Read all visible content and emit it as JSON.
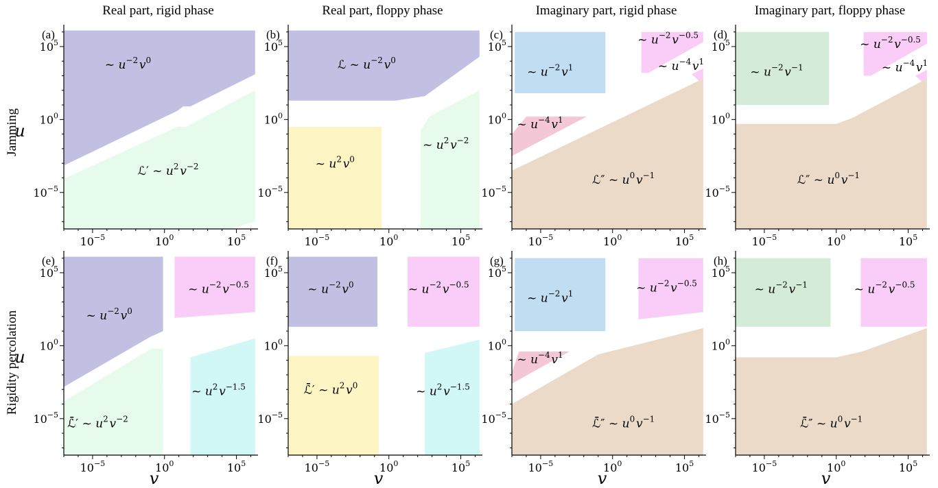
{
  "column_titles": [
    "Real part, rigid phase",
    "Real part, floppy phase",
    "Imaginary part, rigid phase",
    "Imaginary part, floppy phase"
  ],
  "row_labels": [
    "Jamming",
    "Rigidity percolation"
  ],
  "colors": {
    "purple": "#c2c0e2",
    "mint": "#e6fbeb",
    "yellow": "#fdf5c4",
    "pink": "#f9cdf7",
    "cyan": "#d1f7f7",
    "blue": "#c0ddf2",
    "rose": "#f3c7d5",
    "tan": "#ebdac7",
    "green": "#d4ecd7"
  },
  "chart_data": [
    {
      "type": "area",
      "panel": "(a)",
      "row": 0,
      "col": 0,
      "xlabel": "",
      "ylabel": "u",
      "xlim": [
        -7,
        6.5
      ],
      "ylim": [
        -7.5,
        6.5
      ],
      "scale": "log10",
      "x_ticks": [
        "10^-5",
        "10^0",
        "10^5"
      ],
      "y_ticks": [
        "10^5",
        "10^0",
        "10^-5"
      ],
      "regions": [
        {
          "color": "purple",
          "label": "~ u^{-2}v^{0}",
          "label_at": [
            -2.5,
            3.5
          ],
          "polygon": [
            [
              -7.3,
              6.1
            ],
            [
              6.3,
              6.1
            ],
            [
              6.3,
              3.1
            ],
            [
              1.8,
              0.9
            ],
            [
              1.3,
              0.9
            ],
            [
              0.9,
              0.6
            ],
            [
              -7.3,
              -3.3
            ]
          ]
        },
        {
          "color": "mint",
          "label": "ℒ′ ~ u^{2}v^{-2}",
          "label_at": [
            0.3,
            -3.8
          ],
          "polygon": [
            [
              6.3,
              2.0
            ],
            [
              1.5,
              -0.5
            ],
            [
              0.9,
              -0.5
            ],
            [
              -7.3,
              -4.2
            ],
            [
              -7.3,
              -7.5
            ],
            [
              4.5,
              -7.5
            ],
            [
              6.3,
              -7.0
            ]
          ]
        }
      ]
    },
    {
      "type": "area",
      "panel": "(b)",
      "row": 0,
      "col": 1,
      "xlabel": "",
      "ylabel": "",
      "xlim": [
        -7,
        6.5
      ],
      "ylim": [
        -7.5,
        6.5
      ],
      "scale": "log10",
      "x_ticks": [
        "10^-5",
        "10^0",
        "10^5"
      ],
      "y_ticks": [
        "10^5",
        "10^0",
        "10^-5"
      ],
      "regions": [
        {
          "color": "purple",
          "label": "ℒ ~ u^{-2}v^{0}",
          "label_at": [
            -1.5,
            3.5
          ],
          "polygon": [
            [
              -7.3,
              6.1
            ],
            [
              6.3,
              6.1
            ],
            [
              6.3,
              4.3
            ],
            [
              2.5,
              1.6
            ],
            [
              0.5,
              1.3
            ],
            [
              -7.3,
              1.3
            ]
          ]
        },
        {
          "color": "yellow",
          "label": "~ u^{2}v^{0}",
          "label_at": [
            -3.7,
            -3.3
          ],
          "polygon": [
            [
              -7.3,
              -0.5
            ],
            [
              -0.5,
              -0.5
            ],
            [
              -0.5,
              -7.5
            ],
            [
              -7.3,
              -7.5
            ]
          ]
        },
        {
          "color": "mint",
          "label": "~ u^{2}v^{-2}",
          "label_at": [
            4.0,
            -2.0
          ],
          "polygon": [
            [
              6.3,
              2.0
            ],
            [
              2.8,
              0.2
            ],
            [
              2.2,
              -0.8
            ],
            [
              2.2,
              -7.5
            ],
            [
              6.3,
              -7.5
            ]
          ]
        }
      ]
    },
    {
      "type": "area",
      "panel": "(c)",
      "row": 0,
      "col": 2,
      "xlabel": "",
      "ylabel": "",
      "xlim": [
        -7,
        6.5
      ],
      "ylim": [
        -7.5,
        6.5
      ],
      "scale": "log10",
      "x_ticks": [
        "10^-5",
        "10^0",
        "10^5"
      ],
      "y_ticks": [
        "10^5",
        "10^0",
        "10^-5"
      ],
      "regions": [
        {
          "color": "blue",
          "label": "~ u^{-2}v^{1}",
          "label_at": [
            -4.3,
            3.0
          ],
          "polygon": [
            [
              -6.8,
              6.0
            ],
            [
              -0.5,
              6.0
            ],
            [
              -0.5,
              1.8
            ],
            [
              -6.8,
              1.8
            ]
          ]
        },
        {
          "color": "pink",
          "label": "~ u^{-2}v^{-0.5}",
          "label_at": [
            3.9,
            5.2
          ],
          "polygon": [
            [
              2.0,
              6.0
            ],
            [
              6.3,
              6.0
            ],
            [
              6.3,
              5.3
            ],
            [
              2.5,
              3.2
            ],
            [
              2.0,
              3.2
            ]
          ]
        },
        {
          "color": "pink",
          "label": "~ u^{-4}v^{1}",
          "label_at": [
            4.8,
            3.4
          ],
          "polygon": [
            [
              5.5,
              3.1
            ],
            [
              6.3,
              3.5
            ],
            [
              6.3,
              2.4
            ]
          ]
        },
        {
          "color": "rose",
          "label": "~ u^{-4}v^{1}",
          "label_at": [
            -5.0,
            -0.6
          ],
          "polygon": [
            [
              -7.0,
              -1.0
            ],
            [
              -6.0,
              0.2
            ],
            [
              -1.8,
              0.2
            ],
            [
              -7.0,
              -2.5
            ]
          ]
        },
        {
          "color": "tan",
          "label": "ℒ″ ~ u^{0}v^{-1}",
          "label_at": [
            0.8,
            -4.4
          ],
          "polygon": [
            [
              -7.0,
              -3.5
            ],
            [
              6.3,
              2.8
            ],
            [
              6.3,
              -7.5
            ],
            [
              -7.0,
              -7.5
            ]
          ]
        }
      ]
    },
    {
      "type": "area",
      "panel": "(d)",
      "row": 0,
      "col": 3,
      "xlabel": "",
      "ylabel": "",
      "xlim": [
        -7,
        6.5
      ],
      "ylim": [
        -7.5,
        6.5
      ],
      "scale": "log10",
      "x_ticks": [
        "10^-5",
        "10^0",
        "10^5"
      ],
      "y_ticks": [
        "10^5",
        "10^0",
        "10^-5"
      ],
      "regions": [
        {
          "color": "green",
          "label": "~ u^{-2}v^{-1}",
          "label_at": [
            -4.1,
            3.0
          ],
          "polygon": [
            [
              -7.0,
              6.0
            ],
            [
              -0.5,
              6.0
            ],
            [
              -0.5,
              1.0
            ],
            [
              -7.0,
              1.0
            ]
          ]
        },
        {
          "color": "pink",
          "label": "~ u^{-2}v^{-0.5}",
          "label_at": [
            3.8,
            4.9
          ],
          "polygon": [
            [
              1.9,
              6.0
            ],
            [
              6.3,
              6.0
            ],
            [
              6.3,
              5.2
            ],
            [
              2.4,
              3.0
            ],
            [
              1.9,
              3.0
            ]
          ]
        },
        {
          "color": "pink",
          "label": "~ u^{-4}v^{1}",
          "label_at": [
            4.8,
            3.3
          ],
          "polygon": [
            [
              5.5,
              3.0
            ],
            [
              6.3,
              3.4
            ],
            [
              6.3,
              2.3
            ]
          ]
        },
        {
          "color": "tan",
          "label": "ℒ″ ~ u^{0}v^{-1}",
          "label_at": [
            -0.5,
            -4.4
          ],
          "polygon": [
            [
              -7.0,
              -0.3
            ],
            [
              0.0,
              -0.3
            ],
            [
              1.1,
              0.1
            ],
            [
              6.3,
              2.8
            ],
            [
              6.3,
              -7.5
            ],
            [
              -7.0,
              -7.5
            ]
          ]
        }
      ]
    },
    {
      "type": "area",
      "panel": "(e)",
      "row": 1,
      "col": 0,
      "xlabel": "v",
      "ylabel": "u",
      "xlim": [
        -7,
        6.5
      ],
      "ylim": [
        -7.5,
        6.5
      ],
      "scale": "log10",
      "x_ticks": [
        "10^-5",
        "10^0",
        "10^5"
      ],
      "y_ticks": [
        "10^5",
        "10^0",
        "10^-5"
      ],
      "regions": [
        {
          "color": "purple",
          "label": "~ u^{-2}v^{0}",
          "label_at": [
            -3.8,
            1.8
          ],
          "polygon": [
            [
              -7.3,
              6.1
            ],
            [
              -0.1,
              6.1
            ],
            [
              -0.1,
              1.0
            ],
            [
              -1.0,
              0.6
            ],
            [
              -7.3,
              -3.0
            ]
          ]
        },
        {
          "color": "pink",
          "label": "~ u^{-2}v^{-0.5}",
          "label_at": [
            3.8,
            3.6
          ],
          "polygon": [
            [
              0.7,
              6.1
            ],
            [
              6.3,
              6.1
            ],
            [
              6.3,
              2.3
            ],
            [
              0.7,
              1.9
            ]
          ]
        },
        {
          "color": "mint",
          "label": "ℒ̄′ ~ u^{2}v^{-2}",
          "label_at": [
            -4.6,
            -5.6
          ],
          "polygon": [
            [
              -7.3,
              -4.0
            ],
            [
              -0.9,
              -0.2
            ],
            [
              -0.1,
              -0.2
            ],
            [
              -0.1,
              -7.5
            ],
            [
              -7.3,
              -7.5
            ]
          ]
        },
        {
          "color": "cyan",
          "label": "~ u^{2}v^{-1.5}",
          "label_at": [
            3.8,
            -3.4
          ],
          "polygon": [
            [
              1.8,
              -0.8
            ],
            [
              6.3,
              0.5
            ],
            [
              6.3,
              -7.5
            ],
            [
              1.8,
              -7.5
            ]
          ]
        }
      ]
    },
    {
      "type": "area",
      "panel": "(f)",
      "row": 1,
      "col": 1,
      "xlabel": "v",
      "ylabel": "",
      "xlim": [
        -7,
        6.5
      ],
      "ylim": [
        -7.5,
        6.5
      ],
      "scale": "log10",
      "x_ticks": [
        "10^-5",
        "10^0",
        "10^5"
      ],
      "y_ticks": [
        "10^5",
        "10^0",
        "10^-5"
      ],
      "regions": [
        {
          "color": "purple",
          "label": "~ u^{-2}v^{0}",
          "label_at": [
            -4.0,
            3.6
          ],
          "polygon": [
            [
              -7.3,
              6.1
            ],
            [
              -0.8,
              6.1
            ],
            [
              -0.8,
              1.3
            ],
            [
              -7.3,
              1.3
            ]
          ]
        },
        {
          "color": "pink",
          "label": "~ u^{-2}v^{-0.5}",
          "label_at": [
            3.5,
            3.6
          ],
          "polygon": [
            [
              1.3,
              6.1
            ],
            [
              6.3,
              6.1
            ],
            [
              6.3,
              1.3
            ],
            [
              1.3,
              1.3
            ]
          ]
        },
        {
          "color": "yellow",
          "label": "ℒ̄′ ~ u^{2}v^{0}",
          "label_at": [
            -4.0,
            -3.3
          ],
          "polygon": [
            [
              -7.3,
              -0.7
            ],
            [
              -0.7,
              -0.7
            ],
            [
              -0.7,
              -7.5
            ],
            [
              -7.3,
              -7.5
            ]
          ]
        },
        {
          "color": "cyan",
          "label": "~ u^{2}v^{-1.5}",
          "label_at": [
            3.8,
            -3.4
          ],
          "polygon": [
            [
              2.5,
              -0.5
            ],
            [
              6.3,
              0.4
            ],
            [
              6.3,
              -7.5
            ],
            [
              2.5,
              -7.5
            ]
          ]
        }
      ]
    },
    {
      "type": "area",
      "panel": "(g)",
      "row": 1,
      "col": 2,
      "xlabel": "v",
      "ylabel": "",
      "xlim": [
        -7,
        6.5
      ],
      "ylim": [
        -7.5,
        6.5
      ],
      "scale": "log10",
      "x_ticks": [
        "10^-5",
        "10^0",
        "10^5"
      ],
      "y_ticks": [
        "10^5",
        "10^0",
        "10^-5"
      ],
      "regions": [
        {
          "color": "blue",
          "label": "~ u^{-2}v^{1}",
          "label_at": [
            -4.3,
            3.0
          ],
          "polygon": [
            [
              -6.8,
              6.0
            ],
            [
              -0.5,
              6.0
            ],
            [
              -0.5,
              1.0
            ],
            [
              -6.8,
              1.0
            ]
          ]
        },
        {
          "color": "pink",
          "label": "~ u^{-2}v^{-0.5}",
          "label_at": [
            3.8,
            3.7
          ],
          "polygon": [
            [
              1.8,
              6.0
            ],
            [
              6.3,
              6.0
            ],
            [
              6.3,
              2.3
            ],
            [
              1.8,
              1.8
            ]
          ]
        },
        {
          "color": "rose",
          "label": "~ u^{-4}v^{1}",
          "label_at": [
            -5.0,
            -1.2
          ],
          "polygon": [
            [
              -7.0,
              -1.8
            ],
            [
              -6.5,
              -0.4
            ],
            [
              -3.0,
              -0.4
            ],
            [
              -7.0,
              -2.6
            ]
          ]
        },
        {
          "color": "tan",
          "label": "ℒ̄″ ~ u^{0}v^{-1}",
          "label_at": [
            0.8,
            -5.6
          ],
          "polygon": [
            [
              -7.0,
              -4.0
            ],
            [
              -1.0,
              -0.6
            ],
            [
              6.3,
              1.2
            ],
            [
              6.3,
              -7.5
            ],
            [
              -7.0,
              -7.5
            ]
          ]
        }
      ]
    },
    {
      "type": "area",
      "panel": "(h)",
      "row": 1,
      "col": 3,
      "xlabel": "v",
      "ylabel": "",
      "xlim": [
        -7,
        6.5
      ],
      "ylim": [
        -7.5,
        6.5
      ],
      "scale": "log10",
      "x_ticks": [
        "10^-5",
        "10^0",
        "10^5"
      ],
      "y_ticks": [
        "10^5",
        "10^0",
        "10^-5"
      ],
      "regions": [
        {
          "color": "green",
          "label": "~ u^{-2}v^{-1}",
          "label_at": [
            -3.8,
            3.6
          ],
          "polygon": [
            [
              -7.0,
              6.0
            ],
            [
              -0.4,
              6.0
            ],
            [
              -0.4,
              1.3
            ],
            [
              -7.0,
              1.3
            ]
          ]
        },
        {
          "color": "pink",
          "label": "~ u^{-2}v^{-0.5}",
          "label_at": [
            3.4,
            3.6
          ],
          "polygon": [
            [
              1.7,
              6.0
            ],
            [
              6.3,
              6.0
            ],
            [
              6.3,
              1.3
            ],
            [
              1.7,
              1.3
            ]
          ]
        },
        {
          "color": "tan",
          "label": "ℒ̄″ ~ u^{0}v^{-1}",
          "label_at": [
            -0.3,
            -5.6
          ],
          "polygon": [
            [
              -7.0,
              -0.8
            ],
            [
              0.0,
              -0.8
            ],
            [
              1.8,
              -0.4
            ],
            [
              6.3,
              1.2
            ],
            [
              6.3,
              -7.5
            ],
            [
              -7.0,
              -7.5
            ]
          ]
        }
      ]
    }
  ]
}
